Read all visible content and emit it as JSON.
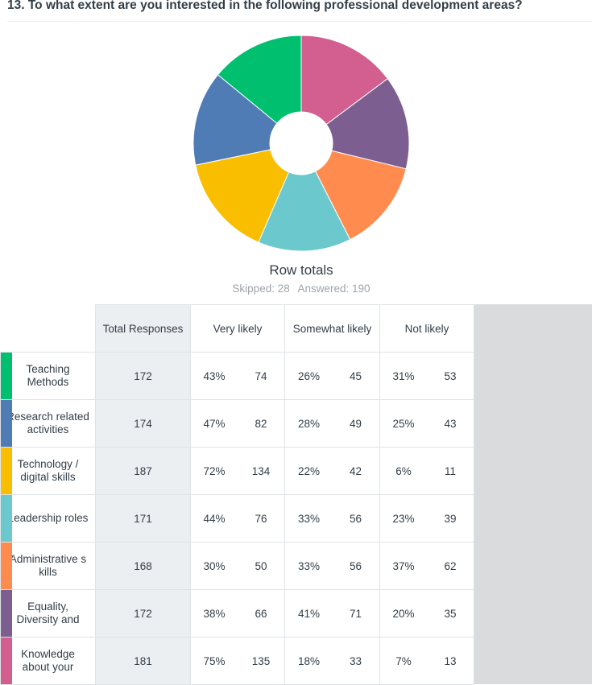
{
  "question": "13. To what extent are you interested in the following professional development areas?",
  "pie": {
    "title": "Row totals",
    "skipped_label": "Skipped: 28",
    "answered_label": "Answered: 190"
  },
  "table": {
    "headers": [
      "Total Responses",
      "Very likely",
      "Somewhat likely",
      "Not likely"
    ],
    "rows": [
      {
        "label": "Teaching Methods",
        "color": "#00bf6f",
        "total": "172",
        "very_pct": "43%",
        "very_n": "74",
        "some_pct": "26%",
        "some_n": "45",
        "not_pct": "31%",
        "not_n": "53"
      },
      {
        "label": "Research related activities",
        "color": "#507cb6",
        "total": "174",
        "very_pct": "47%",
        "very_n": "82",
        "some_pct": "28%",
        "some_n": "49",
        "not_pct": "25%",
        "not_n": "43"
      },
      {
        "label": "Technology / digital skills",
        "color": "#f9be00",
        "total": "187",
        "very_pct": "72%",
        "very_n": "134",
        "some_pct": "22%",
        "some_n": "42",
        "not_pct": "6%",
        "not_n": "11"
      },
      {
        "label": "Leadership roles",
        "color": "#6bc8cd",
        "total": "171",
        "very_pct": "44%",
        "very_n": "76",
        "some_pct": "33%",
        "some_n": "56",
        "not_pct": "23%",
        "not_n": "39"
      },
      {
        "label": "Administrative s kills",
        "color": "#ff8b4f",
        "total": "168",
        "very_pct": "30%",
        "very_n": "50",
        "some_pct": "33%",
        "some_n": "56",
        "not_pct": "37%",
        "not_n": "62"
      },
      {
        "label": "Equality, Diversity and",
        "color": "#7d5e90",
        "total": "172",
        "very_pct": "38%",
        "very_n": "66",
        "some_pct": "41%",
        "some_n": "71",
        "not_pct": "20%",
        "not_n": "35"
      },
      {
        "label": "Knowledge about your",
        "color": "#d25f90",
        "total": "181",
        "very_pct": "75%",
        "very_n": "135",
        "some_pct": "18%",
        "some_n": "33",
        "not_pct": "7%",
        "not_n": "13"
      }
    ]
  },
  "chart_data": {
    "type": "pie",
    "title": "Row totals",
    "categories": [
      "Knowledge about your",
      "Equality, Diversity and",
      "Administrative s kills",
      "Leadership roles",
      "Technology / digital skills",
      "Research related activities",
      "Teaching Methods"
    ],
    "values": [
      181,
      172,
      168,
      171,
      187,
      174,
      172
    ],
    "colors": [
      "#d25f90",
      "#7d5e90",
      "#ff8b4f",
      "#6bc8cd",
      "#f9be00",
      "#507cb6",
      "#00bf6f"
    ]
  }
}
